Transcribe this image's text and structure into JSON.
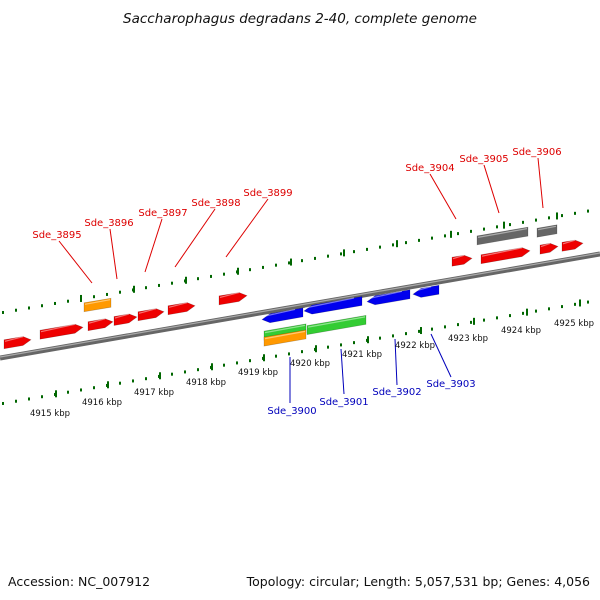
{
  "title": "Saccharophagus degradans 2-40, complete genome",
  "accession_text": "Accession: NC_007912",
  "topology_text": "Topology: circular; Length: 5,057,531 bp; Genes: 4,056",
  "kbp_labels": [
    "4915 kbp",
    "4916 kbp",
    "4917 kbp",
    "4918 kbp",
    "4919 kbp",
    "4920 kbp",
    "4921 kbp",
    "4922 kbp",
    "4923 kbp",
    "4924 kbp",
    "4925 kbp"
  ],
  "upper_gene_labels": [
    "Sde_3895",
    "Sde_3896",
    "Sde_3897",
    "Sde_3898",
    "Sde_3899",
    "Sde_3904",
    "Sde_3905",
    "Sde_3906"
  ],
  "lower_gene_labels": [
    "Sde_3900",
    "Sde_3901",
    "Sde_3902",
    "Sde_3903"
  ],
  "colors": {
    "upper_label": "#dd0000",
    "lower_label": "#0000bb",
    "red_gene": "#ee0000",
    "blue_gene": "#0000ee",
    "green_gene": "#33cc33",
    "orange_gene": "#ff9900",
    "gray_gene": "#666666",
    "tick": "#006600",
    "backbone": "#777777"
  }
}
